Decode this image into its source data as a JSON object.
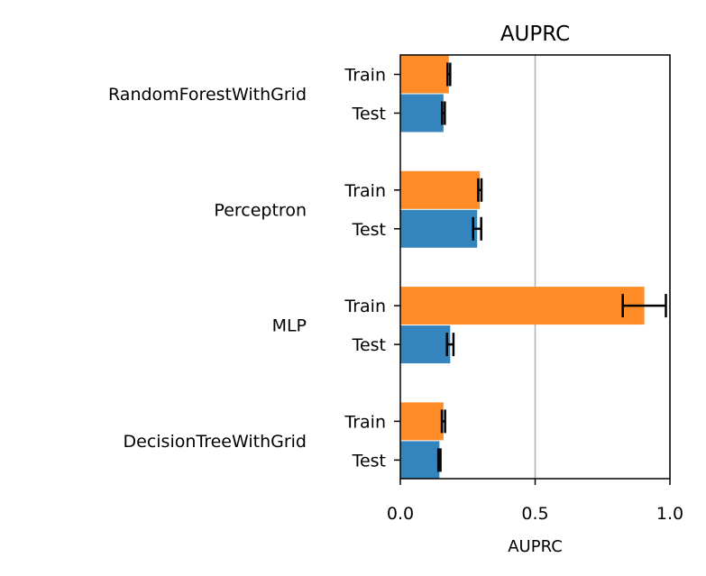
{
  "chart_data": {
    "type": "bar",
    "orientation": "horizontal",
    "title": "AUPRC",
    "xlabel": "AUPRC",
    "ylabel": "",
    "xlim": [
      0,
      1.0
    ],
    "xticks": [
      0.0,
      0.5,
      1.0
    ],
    "xtick_labels": [
      "0.0",
      "0.5",
      "1.0"
    ],
    "grid": "x",
    "legend": "none",
    "groups": [
      {
        "model": "RandomForestWithGrid",
        "bars": [
          {
            "split": "Train",
            "value": 0.18,
            "err": 0.005
          },
          {
            "split": "Test",
            "value": 0.16,
            "err": 0.005
          }
        ]
      },
      {
        "model": "Perceptron",
        "bars": [
          {
            "split": "Train",
            "value": 0.295,
            "err": 0.006
          },
          {
            "split": "Test",
            "value": 0.285,
            "err": 0.015
          }
        ]
      },
      {
        "model": "MLP",
        "bars": [
          {
            "split": "Train",
            "value": 0.905,
            "err": 0.08
          },
          {
            "split": "Test",
            "value": 0.185,
            "err": 0.012
          }
        ]
      },
      {
        "model": "DecisionTreeWithGrid",
        "bars": [
          {
            "split": "Train",
            "value": 0.16,
            "err": 0.006
          },
          {
            "split": "Test",
            "value": 0.145,
            "err": 0.004
          }
        ]
      }
    ],
    "colors": {
      "Train": "#ff8c26",
      "Test": "#3484bd",
      "grid": "#b0b0b0",
      "error": "#000000"
    }
  }
}
